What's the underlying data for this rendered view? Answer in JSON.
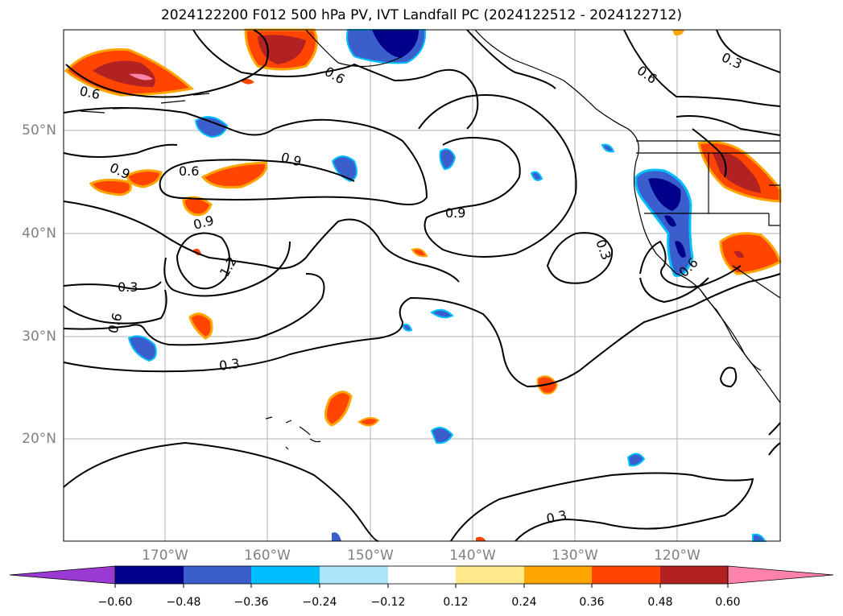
{
  "title": "2024122200 F012 500 hPa PV, IVT Landfall PC (2024122512 - 2024122712)",
  "lat_labels": [
    "50°N",
    "40°N",
    "30°N",
    "20°N"
  ],
  "lon_labels": [
    "170°W",
    "160°W",
    "150°W",
    "140°W",
    "130°W",
    "120°W"
  ],
  "colorbar": {
    "ticks": [
      "−0.60",
      "−0.48",
      "−0.36",
      "−0.24",
      "−0.12",
      "0.12",
      "0.24",
      "0.36",
      "0.48",
      "0.60"
    ],
    "colors": [
      "#9b3ad3",
      "#00008b",
      "#3a5fcd",
      "#00bfff",
      "#aee4fa",
      "#ffffff",
      "#ffe98a",
      "#ffa500",
      "#ff4500",
      "#b22222",
      "#ff82ab"
    ]
  },
  "contour_labels": [
    "0.6",
    "0.6",
    "0.9",
    "0.6",
    "0.9",
    "0.9",
    "1.2",
    "0.3",
    "0.6",
    "0.3",
    "0.6",
    "0.3",
    "0.3",
    "0.6",
    "0.3",
    "0.9"
  ]
}
